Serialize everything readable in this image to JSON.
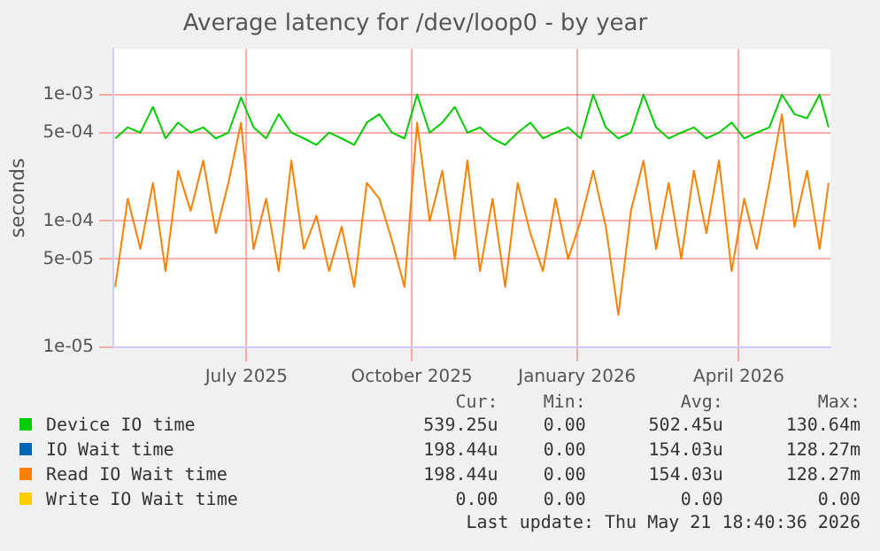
{
  "chart_data": {
    "type": "line",
    "title": "Average latency for /dev/loop0 - by year",
    "ylabel": "seconds",
    "x": [
      "2025-04-19",
      "2025-04-26",
      "2025-05-03",
      "2025-05-10",
      "2025-05-17",
      "2025-05-24",
      "2025-05-31",
      "2025-06-07",
      "2025-06-14",
      "2025-06-21",
      "2025-06-28",
      "2025-07-05",
      "2025-07-12",
      "2025-07-19",
      "2025-07-26",
      "2025-08-02",
      "2025-08-09",
      "2025-08-16",
      "2025-08-23",
      "2025-08-30",
      "2025-09-06",
      "2025-09-13",
      "2025-09-20",
      "2025-09-27",
      "2025-10-04",
      "2025-10-11",
      "2025-10-18",
      "2025-10-25",
      "2025-11-01",
      "2025-11-08",
      "2025-11-15",
      "2025-11-22",
      "2025-11-29",
      "2025-12-06",
      "2025-12-13",
      "2025-12-20",
      "2025-12-27",
      "2026-01-03",
      "2026-01-10",
      "2026-01-17",
      "2026-01-24",
      "2026-01-31",
      "2026-02-07",
      "2026-02-14",
      "2026-02-21",
      "2026-02-28",
      "2026-03-07",
      "2026-03-14",
      "2026-03-21",
      "2026-03-28",
      "2026-04-04",
      "2026-04-11",
      "2026-04-18",
      "2026-04-25",
      "2026-05-02",
      "2026-05-09",
      "2026-05-16",
      "2026-05-21"
    ],
    "series": [
      {
        "name": "Device IO time",
        "color": "#00cc00",
        "values": [
          0.00045,
          0.00055,
          0.0005,
          0.0008,
          0.00045,
          0.0006,
          0.0005,
          0.00055,
          0.00045,
          0.0005,
          0.00095,
          0.00055,
          0.00045,
          0.0007,
          0.0005,
          0.00045,
          0.0004,
          0.0005,
          0.00045,
          0.0004,
          0.0006,
          0.0007,
          0.0005,
          0.00045,
          0.001,
          0.0005,
          0.0006,
          0.0008,
          0.0005,
          0.00055,
          0.00045,
          0.0004,
          0.0005,
          0.0006,
          0.00045,
          0.0005,
          0.00055,
          0.00045,
          0.001,
          0.00055,
          0.00045,
          0.0005,
          0.001,
          0.00055,
          0.00045,
          0.0005,
          0.00055,
          0.00045,
          0.0005,
          0.0006,
          0.00045,
          0.0005,
          0.00055,
          0.001,
          0.0007,
          0.00065,
          0.001,
          0.00055
        ]
      },
      {
        "name": "IO Wait time",
        "color": "#0066b3",
        "values": [
          null,
          null,
          null,
          null,
          null,
          null,
          null,
          null,
          null,
          null,
          null,
          null,
          null,
          null,
          null,
          null,
          null,
          null,
          null,
          null,
          null,
          null,
          null,
          null,
          null,
          null,
          null,
          null,
          null,
          null,
          null,
          null,
          null,
          null,
          null,
          null,
          null,
          null,
          null,
          null,
          null,
          null,
          null,
          null,
          null,
          null,
          null,
          null,
          null,
          null,
          null,
          null,
          null,
          null,
          null,
          null,
          null,
          null
        ]
      },
      {
        "name": "Read IO Wait time",
        "color": "#ff8000",
        "values": [
          3e-05,
          0.00015,
          6e-05,
          0.0002,
          4e-05,
          0.00025,
          0.00012,
          0.0003,
          8e-05,
          0.0002,
          0.0006,
          6e-05,
          0.00015,
          4e-05,
          0.0003,
          6e-05,
          0.00011,
          4e-05,
          9e-05,
          3e-05,
          0.0002,
          0.00015,
          7e-05,
          3e-05,
          0.0006,
          0.0001,
          0.00025,
          5e-05,
          0.0003,
          4e-05,
          0.00015,
          3e-05,
          0.0002,
          8e-05,
          4e-05,
          0.00015,
          5e-05,
          0.0001,
          0.00025,
          9e-05,
          1.8e-05,
          0.00012,
          0.0003,
          6e-05,
          0.0002,
          5e-05,
          0.00025,
          8e-05,
          0.0003,
          4e-05,
          0.00015,
          6e-05,
          0.0002,
          0.0007,
          9e-05,
          0.00025,
          6e-05,
          0.0002
        ]
      },
      {
        "name": "Write IO Wait time",
        "color": "#ffcc00",
        "values": [
          null,
          null,
          null,
          null,
          null,
          null,
          null,
          null,
          null,
          null,
          null,
          null,
          null,
          null,
          null,
          null,
          null,
          null,
          null,
          null,
          null,
          null,
          null,
          null,
          null,
          null,
          null,
          null,
          null,
          null,
          null,
          null,
          null,
          null,
          null,
          null,
          null,
          null,
          null,
          null,
          null,
          null,
          null,
          null,
          null,
          null,
          null,
          null,
          null,
          null,
          null,
          null,
          null,
          null,
          null,
          null,
          null,
          null
        ]
      }
    ],
    "xlim": [
      "2025-04-18",
      "2026-05-22"
    ],
    "xticks": [
      {
        "value": "2025-07-01",
        "label": "July 2025"
      },
      {
        "value": "2025-10-01",
        "label": "October 2025"
      },
      {
        "value": "2026-01-01",
        "label": "January 2026"
      },
      {
        "value": "2026-04-01",
        "label": "April 2026"
      }
    ],
    "ylim": [
      1e-05,
      0.0023
    ],
    "yticks": [
      {
        "value": 1e-05,
        "label": "1e-05"
      },
      {
        "value": 5e-05,
        "label": "5e-05"
      },
      {
        "value": 0.0001,
        "label": "1e-04"
      },
      {
        "value": 0.0005,
        "label": "5e-04"
      },
      {
        "value": 0.001,
        "label": "1e-03"
      }
    ],
    "log": "y",
    "grid": true,
    "legend": "bottom",
    "marker": "none",
    "line_style": "solid",
    "annotations": [
      "Cur:",
      "Min:",
      "Avg:",
      "Max:",
      "539.25u",
      "0.00",
      "502.45u",
      "130.64m",
      "198.44u",
      "0.00",
      "154.03u",
      "128.27m",
      "198.44u",
      "0.00",
      "154.03u",
      "128.27m",
      "0.00",
      "0.00",
      "0.00",
      "0.00",
      "Last update: Thu May 21 18:40:36 2026"
    ]
  }
}
